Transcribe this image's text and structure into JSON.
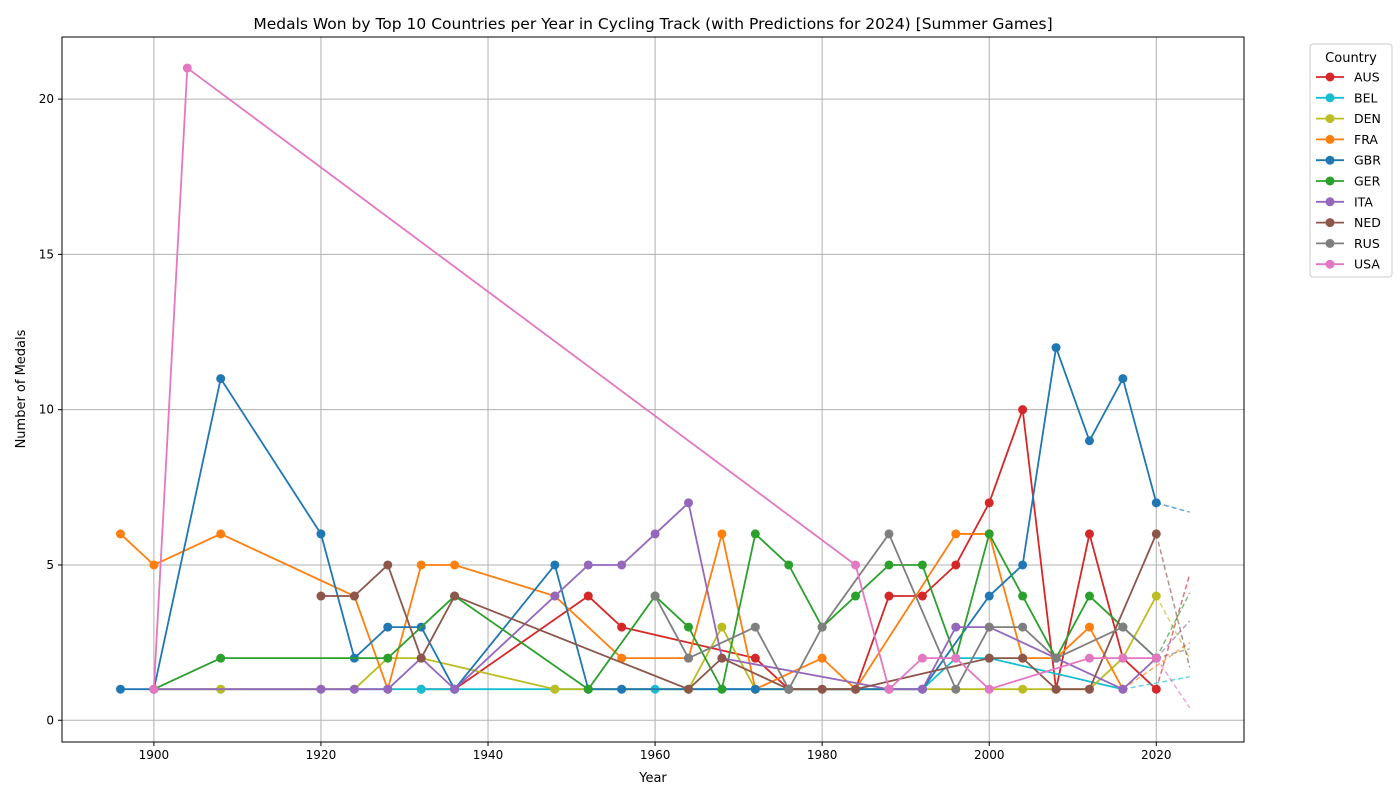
{
  "chart_data": {
    "type": "line",
    "title": "Medals Won by Top 10 Countries per Year in Cycling Track (with Predictions for 2024) [Summer Games]",
    "xlabel": "Year",
    "ylabel": "Number of Medals",
    "xlim": [
      1889,
      2030.5
    ],
    "ylim": [
      -0.7,
      22
    ],
    "xticks": [
      1900,
      1920,
      1940,
      1960,
      1980,
      2000,
      2020
    ],
    "yticks": [
      0,
      5,
      10,
      15,
      20
    ],
    "grid": true,
    "legend": {
      "title": "Country",
      "placement": "outside-top-right"
    },
    "prediction_style": "dashed line to 2024",
    "series": [
      {
        "name": "AUS",
        "color": "#d62728",
        "points": [
          [
            1932,
            1
          ],
          [
            1936,
            1
          ],
          [
            1952,
            4
          ],
          [
            1956,
            3
          ],
          [
            1972,
            2
          ],
          [
            1976,
            1
          ],
          [
            1984,
            1
          ],
          [
            1988,
            4
          ],
          [
            1992,
            4
          ],
          [
            1996,
            5
          ],
          [
            2000,
            7
          ],
          [
            2004,
            10
          ],
          [
            2008,
            1
          ],
          [
            2012,
            6
          ],
          [
            2016,
            2
          ],
          [
            2020,
            1
          ]
        ],
        "prediction": [
          [
            2020,
            1
          ],
          [
            2024,
            4.7
          ]
        ]
      },
      {
        "name": "BEL",
        "color": "#17becf",
        "points": [
          [
            1900,
            1
          ],
          [
            1908,
            1
          ],
          [
            1920,
            1
          ],
          [
            1924,
            1
          ],
          [
            1928,
            1
          ],
          [
            1932,
            1
          ],
          [
            1936,
            1
          ],
          [
            1948,
            1
          ],
          [
            1952,
            1
          ],
          [
            1956,
            1
          ],
          [
            1960,
            1
          ],
          [
            1964,
            1
          ],
          [
            1968,
            1
          ],
          [
            1972,
            1
          ],
          [
            1976,
            1
          ],
          [
            1980,
            1
          ],
          [
            1984,
            1
          ],
          [
            1988,
            1
          ],
          [
            1992,
            1
          ],
          [
            1996,
            2
          ],
          [
            2000,
            2
          ],
          [
            2016,
            1
          ]
        ],
        "prediction": [
          [
            2016,
            1
          ],
          [
            2024,
            1.4
          ]
        ]
      },
      {
        "name": "DEN",
        "color": "#bcbd22",
        "points": [
          [
            1900,
            1
          ],
          [
            1908,
            1
          ],
          [
            1920,
            1
          ],
          [
            1924,
            1
          ],
          [
            1928,
            2
          ],
          [
            1932,
            2
          ],
          [
            1948,
            1
          ],
          [
            1952,
            1
          ],
          [
            1964,
            1
          ],
          [
            1968,
            3
          ],
          [
            1972,
            1
          ],
          [
            1976,
            1
          ],
          [
            1980,
            1
          ],
          [
            1984,
            1
          ],
          [
            1988,
            1
          ],
          [
            1992,
            1
          ],
          [
            1996,
            1
          ],
          [
            2000,
            1
          ],
          [
            2004,
            1
          ],
          [
            2008,
            1
          ],
          [
            2012,
            1
          ],
          [
            2016,
            2
          ],
          [
            2020,
            4
          ]
        ],
        "prediction": [
          [
            2020,
            4
          ],
          [
            2024,
            2
          ]
        ]
      },
      {
        "name": "FRA",
        "color": "#ff7f0e",
        "points": [
          [
            1896,
            6
          ],
          [
            1900,
            5
          ],
          [
            1908,
            6
          ],
          [
            1924,
            4
          ],
          [
            1928,
            1
          ],
          [
            1932,
            5
          ],
          [
            1936,
            5
          ],
          [
            1948,
            4
          ],
          [
            1956,
            2
          ],
          [
            1964,
            2
          ],
          [
            1968,
            6
          ],
          [
            1972,
            1
          ],
          [
            1980,
            2
          ],
          [
            1984,
            1
          ],
          [
            1996,
            6
          ],
          [
            2000,
            6
          ],
          [
            2004,
            2
          ],
          [
            2008,
            2
          ],
          [
            2012,
            3
          ],
          [
            2016,
            1
          ]
        ],
        "prediction": [
          [
            2016,
            1
          ],
          [
            2024,
            2.5
          ]
        ]
      },
      {
        "name": "GBR",
        "color": "#1f77b4",
        "points": [
          [
            1896,
            1
          ],
          [
            1900,
            1
          ],
          [
            1908,
            11
          ],
          [
            1920,
            6
          ],
          [
            1924,
            2
          ],
          [
            1928,
            3
          ],
          [
            1932,
            3
          ],
          [
            1936,
            1
          ],
          [
            1948,
            5
          ],
          [
            1952,
            1
          ],
          [
            1956,
            1
          ],
          [
            1972,
            1
          ],
          [
            1976,
            1
          ],
          [
            1992,
            1
          ],
          [
            2000,
            4
          ],
          [
            2004,
            5
          ],
          [
            2008,
            12
          ],
          [
            2012,
            9
          ],
          [
            2016,
            11
          ],
          [
            2020,
            7
          ]
        ],
        "prediction": [
          [
            2020,
            7
          ],
          [
            2024,
            6.7
          ]
        ]
      },
      {
        "name": "GER",
        "color": "#2ca02c",
        "points": [
          [
            1900,
            1
          ],
          [
            1908,
            2
          ],
          [
            1928,
            2
          ],
          [
            1936,
            4
          ],
          [
            1952,
            1
          ],
          [
            1960,
            4
          ],
          [
            1964,
            3
          ],
          [
            1968,
            1
          ],
          [
            1972,
            6
          ],
          [
            1976,
            5
          ],
          [
            1980,
            3
          ],
          [
            1984,
            4
          ],
          [
            1988,
            5
          ],
          [
            1992,
            5
          ],
          [
            1996,
            2
          ],
          [
            2000,
            6
          ],
          [
            2004,
            4
          ],
          [
            2008,
            2
          ],
          [
            2012,
            4
          ],
          [
            2016,
            3
          ],
          [
            2020,
            2
          ]
        ],
        "prediction": [
          [
            2020,
            2
          ],
          [
            2024,
            4.1
          ]
        ]
      },
      {
        "name": "ITA",
        "color": "#9467bd",
        "points": [
          [
            1900,
            1
          ],
          [
            1920,
            1
          ],
          [
            1924,
            1
          ],
          [
            1928,
            1
          ],
          [
            1932,
            2
          ],
          [
            1936,
            1
          ],
          [
            1948,
            4
          ],
          [
            1952,
            5
          ],
          [
            1956,
            5
          ],
          [
            1960,
            6
          ],
          [
            1964,
            7
          ],
          [
            1968,
            2
          ],
          [
            1988,
            1
          ],
          [
            1992,
            1
          ],
          [
            1996,
            3
          ],
          [
            2000,
            3
          ],
          [
            2008,
            2
          ],
          [
            2016,
            1
          ],
          [
            2020,
            2
          ]
        ],
        "prediction": [
          [
            2020,
            2
          ],
          [
            2024,
            3.2
          ]
        ]
      },
      {
        "name": "NED",
        "color": "#8c564b",
        "points": [
          [
            1920,
            4
          ],
          [
            1924,
            4
          ],
          [
            1928,
            5
          ],
          [
            1932,
            2
          ],
          [
            1936,
            4
          ],
          [
            1964,
            1
          ],
          [
            1968,
            2
          ],
          [
            1976,
            1
          ],
          [
            1980,
            1
          ],
          [
            1984,
            1
          ],
          [
            2000,
            2
          ],
          [
            2004,
            2
          ],
          [
            2008,
            1
          ],
          [
            2012,
            1
          ],
          [
            2020,
            6
          ]
        ],
        "prediction": [
          [
            2020,
            6
          ],
          [
            2024,
            1.7
          ]
        ]
      },
      {
        "name": "RUS",
        "color": "#7f7f7f",
        "points": [
          [
            1960,
            4
          ],
          [
            1964,
            2
          ],
          [
            1972,
            3
          ],
          [
            1976,
            1
          ],
          [
            1980,
            3
          ],
          [
            1988,
            6
          ],
          [
            1996,
            1
          ],
          [
            2000,
            3
          ],
          [
            2004,
            3
          ],
          [
            2008,
            2
          ],
          [
            2016,
            3
          ],
          [
            2020,
            2
          ]
        ],
        "prediction": [
          [
            2020,
            2
          ],
          [
            2024,
            2.3
          ]
        ]
      },
      {
        "name": "USA",
        "color": "#e377c2",
        "points": [
          [
            1900,
            1
          ],
          [
            1904,
            21
          ],
          [
            1984,
            5
          ],
          [
            1988,
            1
          ],
          [
            1992,
            2
          ],
          [
            1996,
            2
          ],
          [
            2000,
            1
          ],
          [
            2012,
            2
          ],
          [
            2016,
            2
          ],
          [
            2020,
            2
          ]
        ],
        "prediction": [
          [
            2020,
            2
          ],
          [
            2024,
            0.4
          ]
        ]
      }
    ]
  }
}
